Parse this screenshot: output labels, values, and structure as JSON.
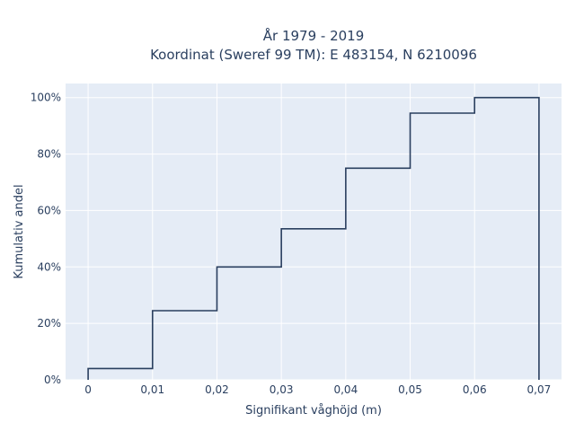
{
  "chart_data": {
    "type": "line",
    "line_shape": "step",
    "title_lines": [
      "År 1979 - 2019",
      "Koordinat (Sweref 99 TM): E 483154, N 6210096"
    ],
    "xlabel": "Signifikant våghöjd (m)",
    "ylabel": "Kumulativ andel",
    "xlim": [
      -0.0035,
      0.0735
    ],
    "ylim": [
      0,
      1.05
    ],
    "x_ticks": [
      {
        "value": 0,
        "label": "0"
      },
      {
        "value": 0.01,
        "label": "0,01"
      },
      {
        "value": 0.02,
        "label": "0,02"
      },
      {
        "value": 0.03,
        "label": "0,03"
      },
      {
        "value": 0.04,
        "label": "0,04"
      },
      {
        "value": 0.05,
        "label": "0,05"
      },
      {
        "value": 0.06,
        "label": "0,06"
      },
      {
        "value": 0.07,
        "label": "0,07"
      }
    ],
    "y_ticks": [
      {
        "value": 0,
        "label": "0%"
      },
      {
        "value": 0.2,
        "label": "20%"
      },
      {
        "value": 0.4,
        "label": "40%"
      },
      {
        "value": 0.6,
        "label": "60%"
      },
      {
        "value": 0.8,
        "label": "80%"
      },
      {
        "value": 1.0,
        "label": "100%"
      }
    ],
    "x": [
      0,
      0.01,
      0.02,
      0.03,
      0.04,
      0.05,
      0.06,
      0.07
    ],
    "y": [
      0.04,
      0.245,
      0.4,
      0.535,
      0.75,
      0.945,
      1.0,
      0
    ],
    "grid": true,
    "colors": {
      "background": "#e5ecf6",
      "grid": "#ffffff",
      "line": "#2a3f5f",
      "text": "#2a3f5f"
    }
  }
}
